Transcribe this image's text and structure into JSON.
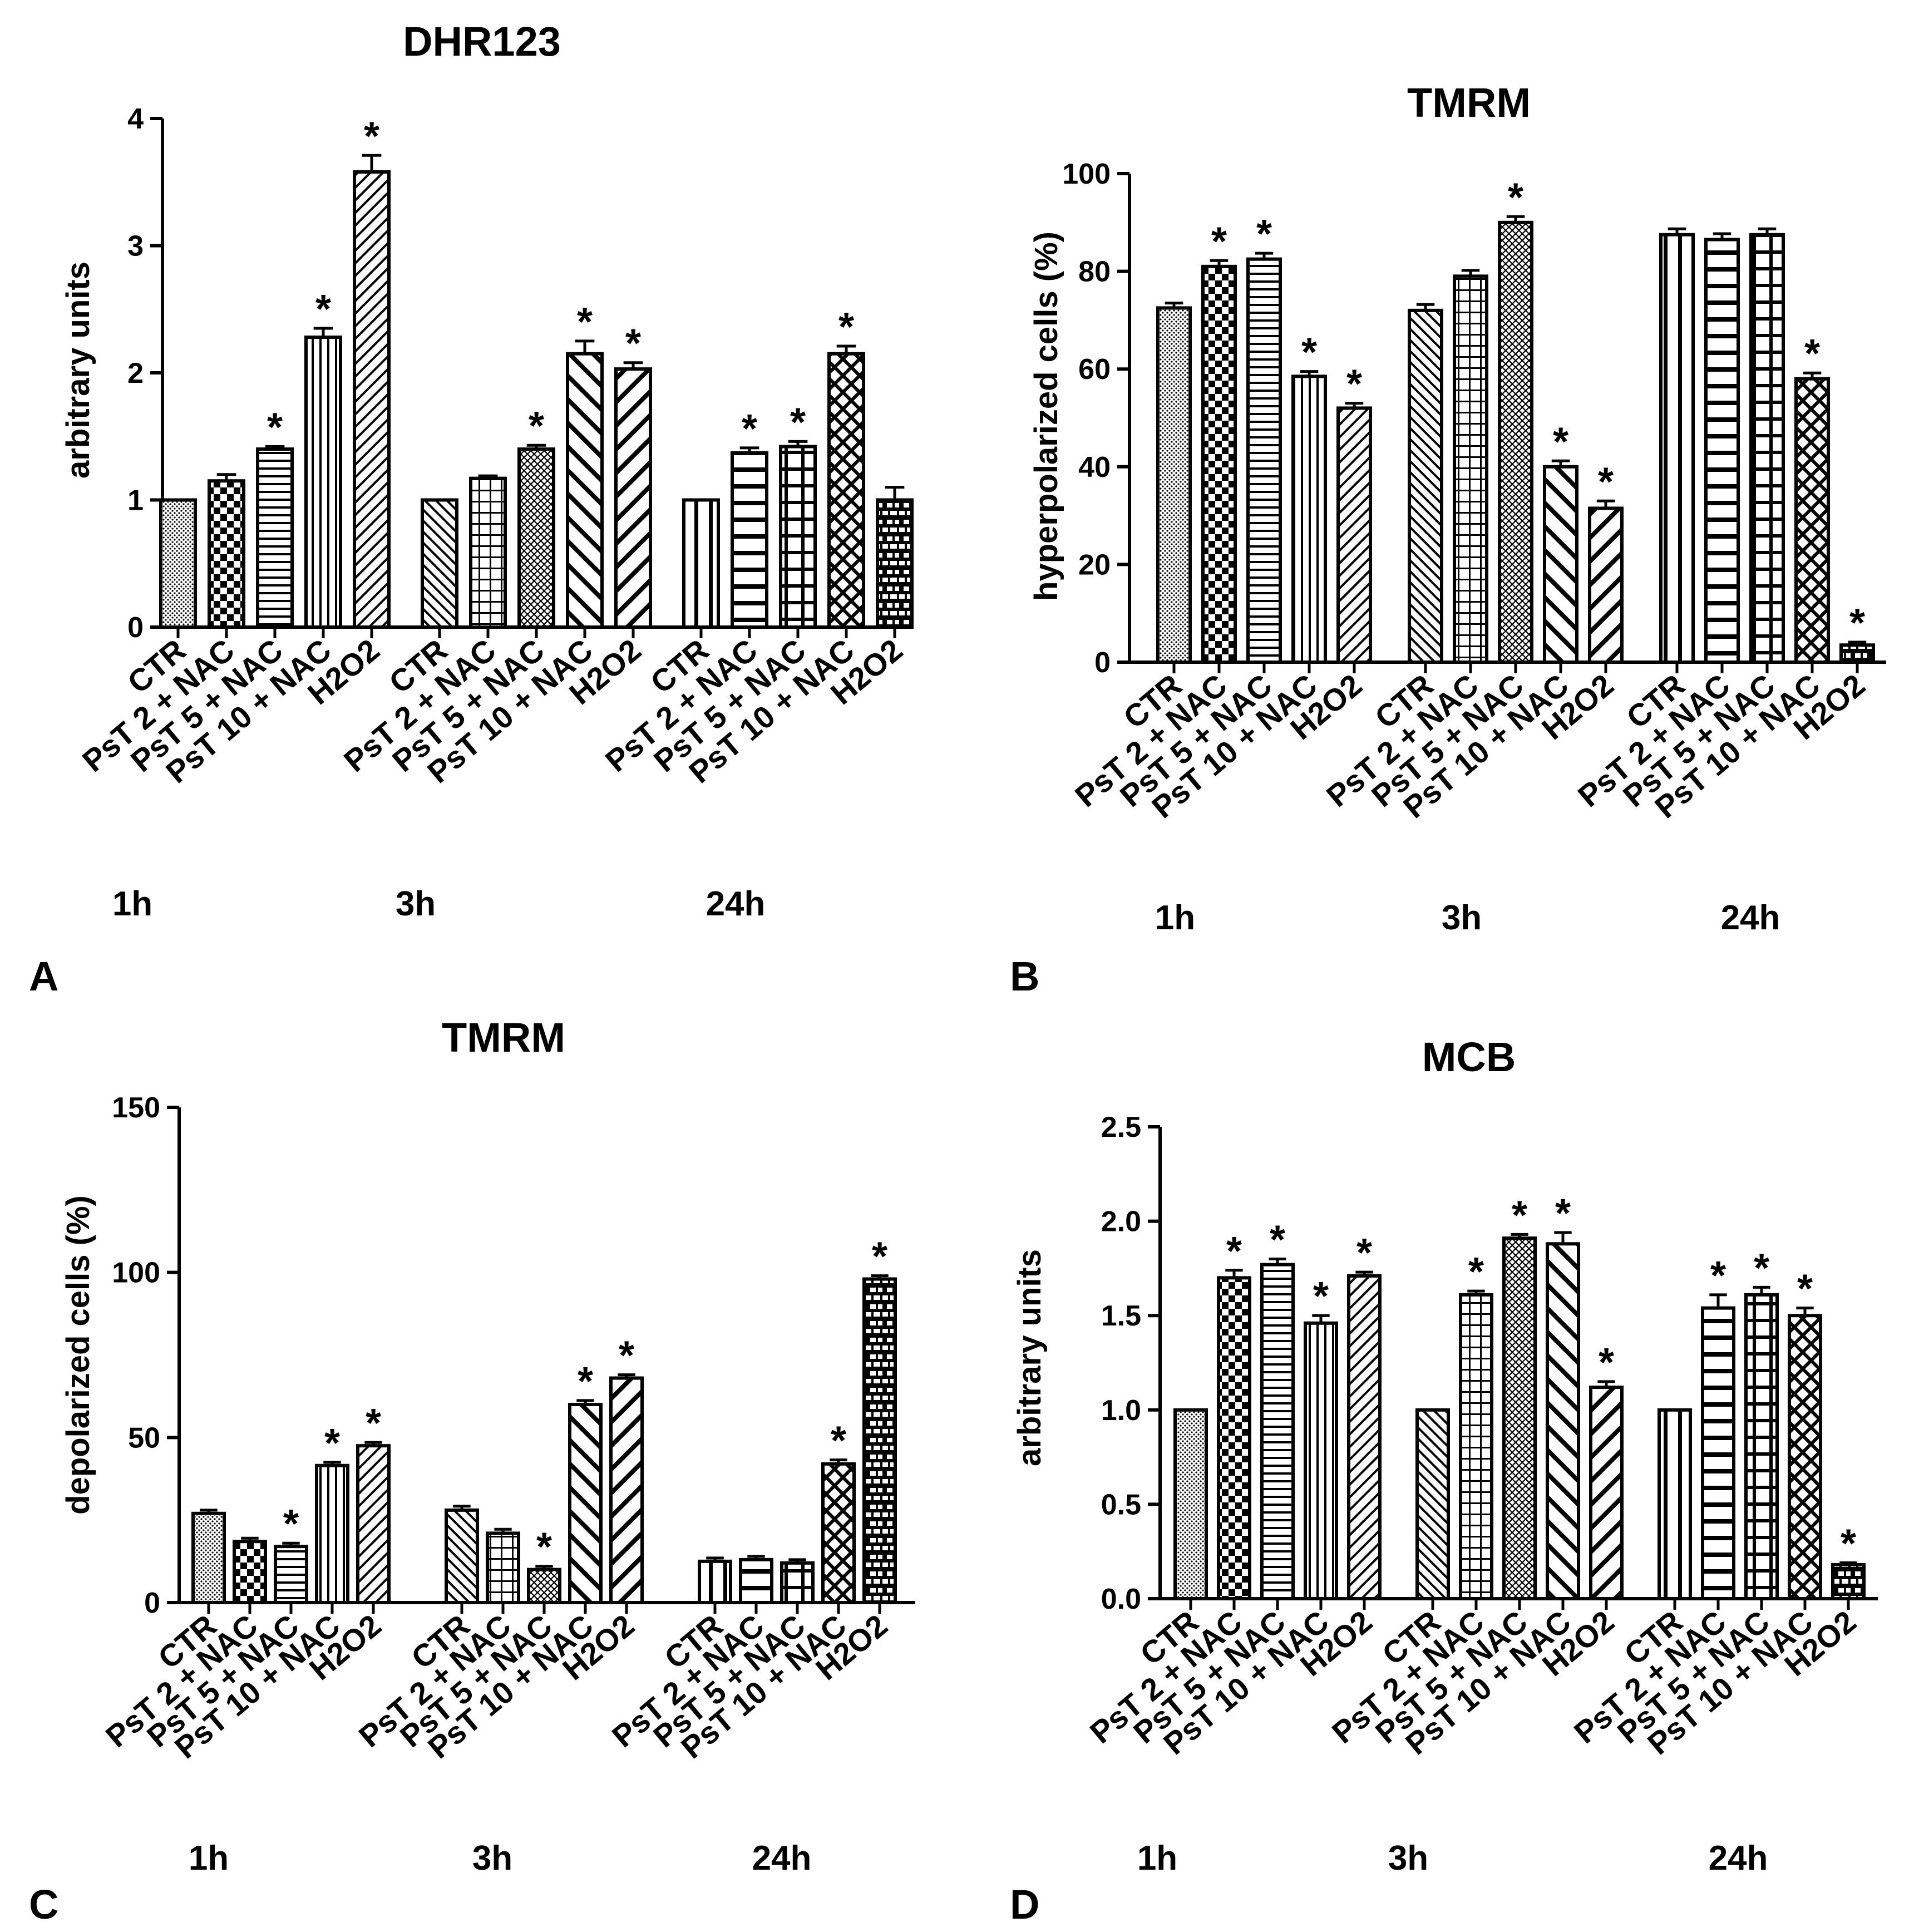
{
  "chart_data": [
    {
      "panel": "A",
      "type": "bar",
      "title": "DHR123",
      "ylabel": "arbitrary units",
      "xlabel": "",
      "ylim": [
        0,
        4
      ],
      "yticks": [
        "0",
        "1",
        "2",
        "3",
        "4"
      ],
      "groups": [
        "1h",
        "3h",
        "24h"
      ],
      "categories": [
        "CTR",
        "PsT 2 + NAC",
        "PsT 5 + NAC",
        "PsT 10 + NAC",
        "H2O2"
      ],
      "series": [
        {
          "name": "1h",
          "values": [
            1.0,
            1.15,
            1.4,
            2.28,
            3.58
          ],
          "errors": [
            0.0,
            0.05,
            0.02,
            0.07,
            0.13
          ],
          "significant": [
            false,
            false,
            true,
            true,
            true
          ],
          "patterns": [
            "dots",
            "checker",
            "hlines",
            "vlines",
            "diag-r"
          ]
        },
        {
          "name": "3h",
          "values": [
            1.0,
            1.17,
            1.4,
            2.15,
            2.03
          ],
          "errors": [
            0.0,
            0.02,
            0.03,
            0.1,
            0.05
          ],
          "significant": [
            false,
            false,
            true,
            true,
            true
          ],
          "patterns": [
            "diag-l",
            "grid",
            "crosshatch",
            "diag-l-wide",
            "diag-r-wide"
          ]
        },
        {
          "name": "24h",
          "values": [
            1.0,
            1.37,
            1.42,
            2.15,
            1.0
          ],
          "errors": [
            0.0,
            0.04,
            0.04,
            0.06,
            0.1
          ],
          "significant": [
            false,
            true,
            true,
            true,
            false
          ],
          "patterns": [
            "vlines-wide",
            "hlines-wide",
            "grid-wide",
            "xcross",
            "brick"
          ]
        }
      ]
    },
    {
      "panel": "B",
      "type": "bar",
      "title": "TMRM",
      "ylabel": "hyperpolarized cells (%)",
      "xlabel": "",
      "ylim": [
        0,
        100
      ],
      "yticks": [
        "0",
        "20",
        "40",
        "60",
        "80",
        "100"
      ],
      "groups": [
        "1h",
        "3h",
        "24h"
      ],
      "categories": [
        "CTR",
        "PsT 2 + NAC",
        "PsT 5 + NAC",
        "PsT 10 + NAC",
        "H2O2"
      ],
      "series": [
        {
          "name": "1h",
          "values": [
            72.5,
            81.0,
            82.5,
            58.5,
            52.0
          ],
          "errors": [
            1.0,
            1.2,
            1.2,
            1.0,
            1.0
          ],
          "significant": [
            false,
            true,
            true,
            true,
            true
          ],
          "patterns": [
            "dots",
            "checker",
            "hlines",
            "vlines",
            "diag-r"
          ]
        },
        {
          "name": "3h",
          "values": [
            72.0,
            79.0,
            90.0,
            40.0,
            31.5
          ],
          "errors": [
            1.2,
            1.2,
            1.2,
            1.2,
            1.5
          ],
          "significant": [
            false,
            false,
            true,
            true,
            true
          ],
          "patterns": [
            "diag-l",
            "grid",
            "crosshatch",
            "diag-l-wide",
            "diag-r-wide"
          ]
        },
        {
          "name": "24h",
          "values": [
            87.5,
            86.5,
            87.5,
            58.0,
            3.5
          ],
          "errors": [
            1.2,
            1.2,
            1.2,
            1.2,
            0.6
          ],
          "significant": [
            false,
            false,
            false,
            true,
            true
          ],
          "patterns": [
            "vlines-wide",
            "hlines-wide",
            "grid-wide",
            "xcross",
            "brick"
          ]
        }
      ]
    },
    {
      "panel": "C",
      "type": "bar",
      "title": "TMRM",
      "ylabel": "depolarized cells (%)",
      "xlabel": "",
      "ylim": [
        0,
        150
      ],
      "yticks": [
        "0",
        "50",
        "100",
        "150"
      ],
      "groups": [
        "1h",
        "3h",
        "24h"
      ],
      "categories": [
        "CTR",
        "PsT 2 + NAC",
        "PsT 5 + NAC",
        "PsT 10 + NAC",
        "H2O2"
      ],
      "series": [
        {
          "name": "1h",
          "values": [
            27.0,
            18.5,
            17.0,
            41.5,
            47.5
          ],
          "errors": [
            1.0,
            1.0,
            1.0,
            1.0,
            1.0
          ],
          "significant": [
            false,
            false,
            true,
            true,
            true
          ],
          "patterns": [
            "dots",
            "checker",
            "hlines",
            "vlines",
            "diag-r"
          ]
        },
        {
          "name": "3h",
          "values": [
            28.0,
            21.0,
            10.0,
            60.0,
            68.0
          ],
          "errors": [
            1.2,
            1.2,
            1.0,
            1.2,
            1.0
          ],
          "significant": [
            false,
            false,
            true,
            true,
            true
          ],
          "patterns": [
            "diag-l",
            "grid",
            "crosshatch",
            "diag-l-wide",
            "diag-r-wide"
          ]
        },
        {
          "name": "24h",
          "values": [
            12.5,
            13.0,
            12.0,
            42.0,
            98.0
          ],
          "errors": [
            1.0,
            1.0,
            1.0,
            1.2,
            1.0
          ],
          "significant": [
            false,
            false,
            false,
            true,
            true
          ],
          "patterns": [
            "vlines-wide",
            "hlines-wide",
            "grid-wide",
            "xcross",
            "brick"
          ]
        }
      ]
    },
    {
      "panel": "D",
      "type": "bar",
      "title": "MCB",
      "ylabel": "arbitrary units",
      "xlabel": "",
      "ylim": [
        0,
        2.5
      ],
      "yticks": [
        "0.0",
        "0.5",
        "1.0",
        "1.5",
        "2.0",
        "2.5"
      ],
      "groups": [
        "1h",
        "3h",
        "24h"
      ],
      "categories": [
        "CTR",
        "PsT 2 + NAC",
        "PsT 5 + NAC",
        "PsT 10 + NAC",
        "H2O2"
      ],
      "series": [
        {
          "name": "1h",
          "values": [
            1.0,
            1.7,
            1.77,
            1.46,
            1.71
          ],
          "errors": [
            0.0,
            0.04,
            0.03,
            0.04,
            0.02
          ],
          "significant": [
            false,
            true,
            true,
            true,
            true
          ],
          "patterns": [
            "dots",
            "checker",
            "hlines",
            "vlines",
            "diag-r"
          ]
        },
        {
          "name": "3h",
          "values": [
            1.0,
            1.61,
            1.91,
            1.88,
            1.12
          ],
          "errors": [
            0.0,
            0.02,
            0.02,
            0.06,
            0.03
          ],
          "significant": [
            false,
            true,
            true,
            true,
            true
          ],
          "patterns": [
            "diag-l",
            "grid",
            "crosshatch",
            "diag-l-wide",
            "diag-r-wide"
          ]
        },
        {
          "name": "24h",
          "values": [
            1.0,
            1.54,
            1.61,
            1.5,
            0.18
          ],
          "errors": [
            0.0,
            0.07,
            0.04,
            0.04,
            0.01
          ],
          "significant": [
            false,
            true,
            true,
            true,
            true
          ],
          "patterns": [
            "vlines-wide",
            "hlines-wide",
            "grid-wide",
            "xcross",
            "brick"
          ]
        }
      ]
    }
  ],
  "significance_marker": "*",
  "colors": {
    "ink": "#000000",
    "background": "#ffffff"
  }
}
